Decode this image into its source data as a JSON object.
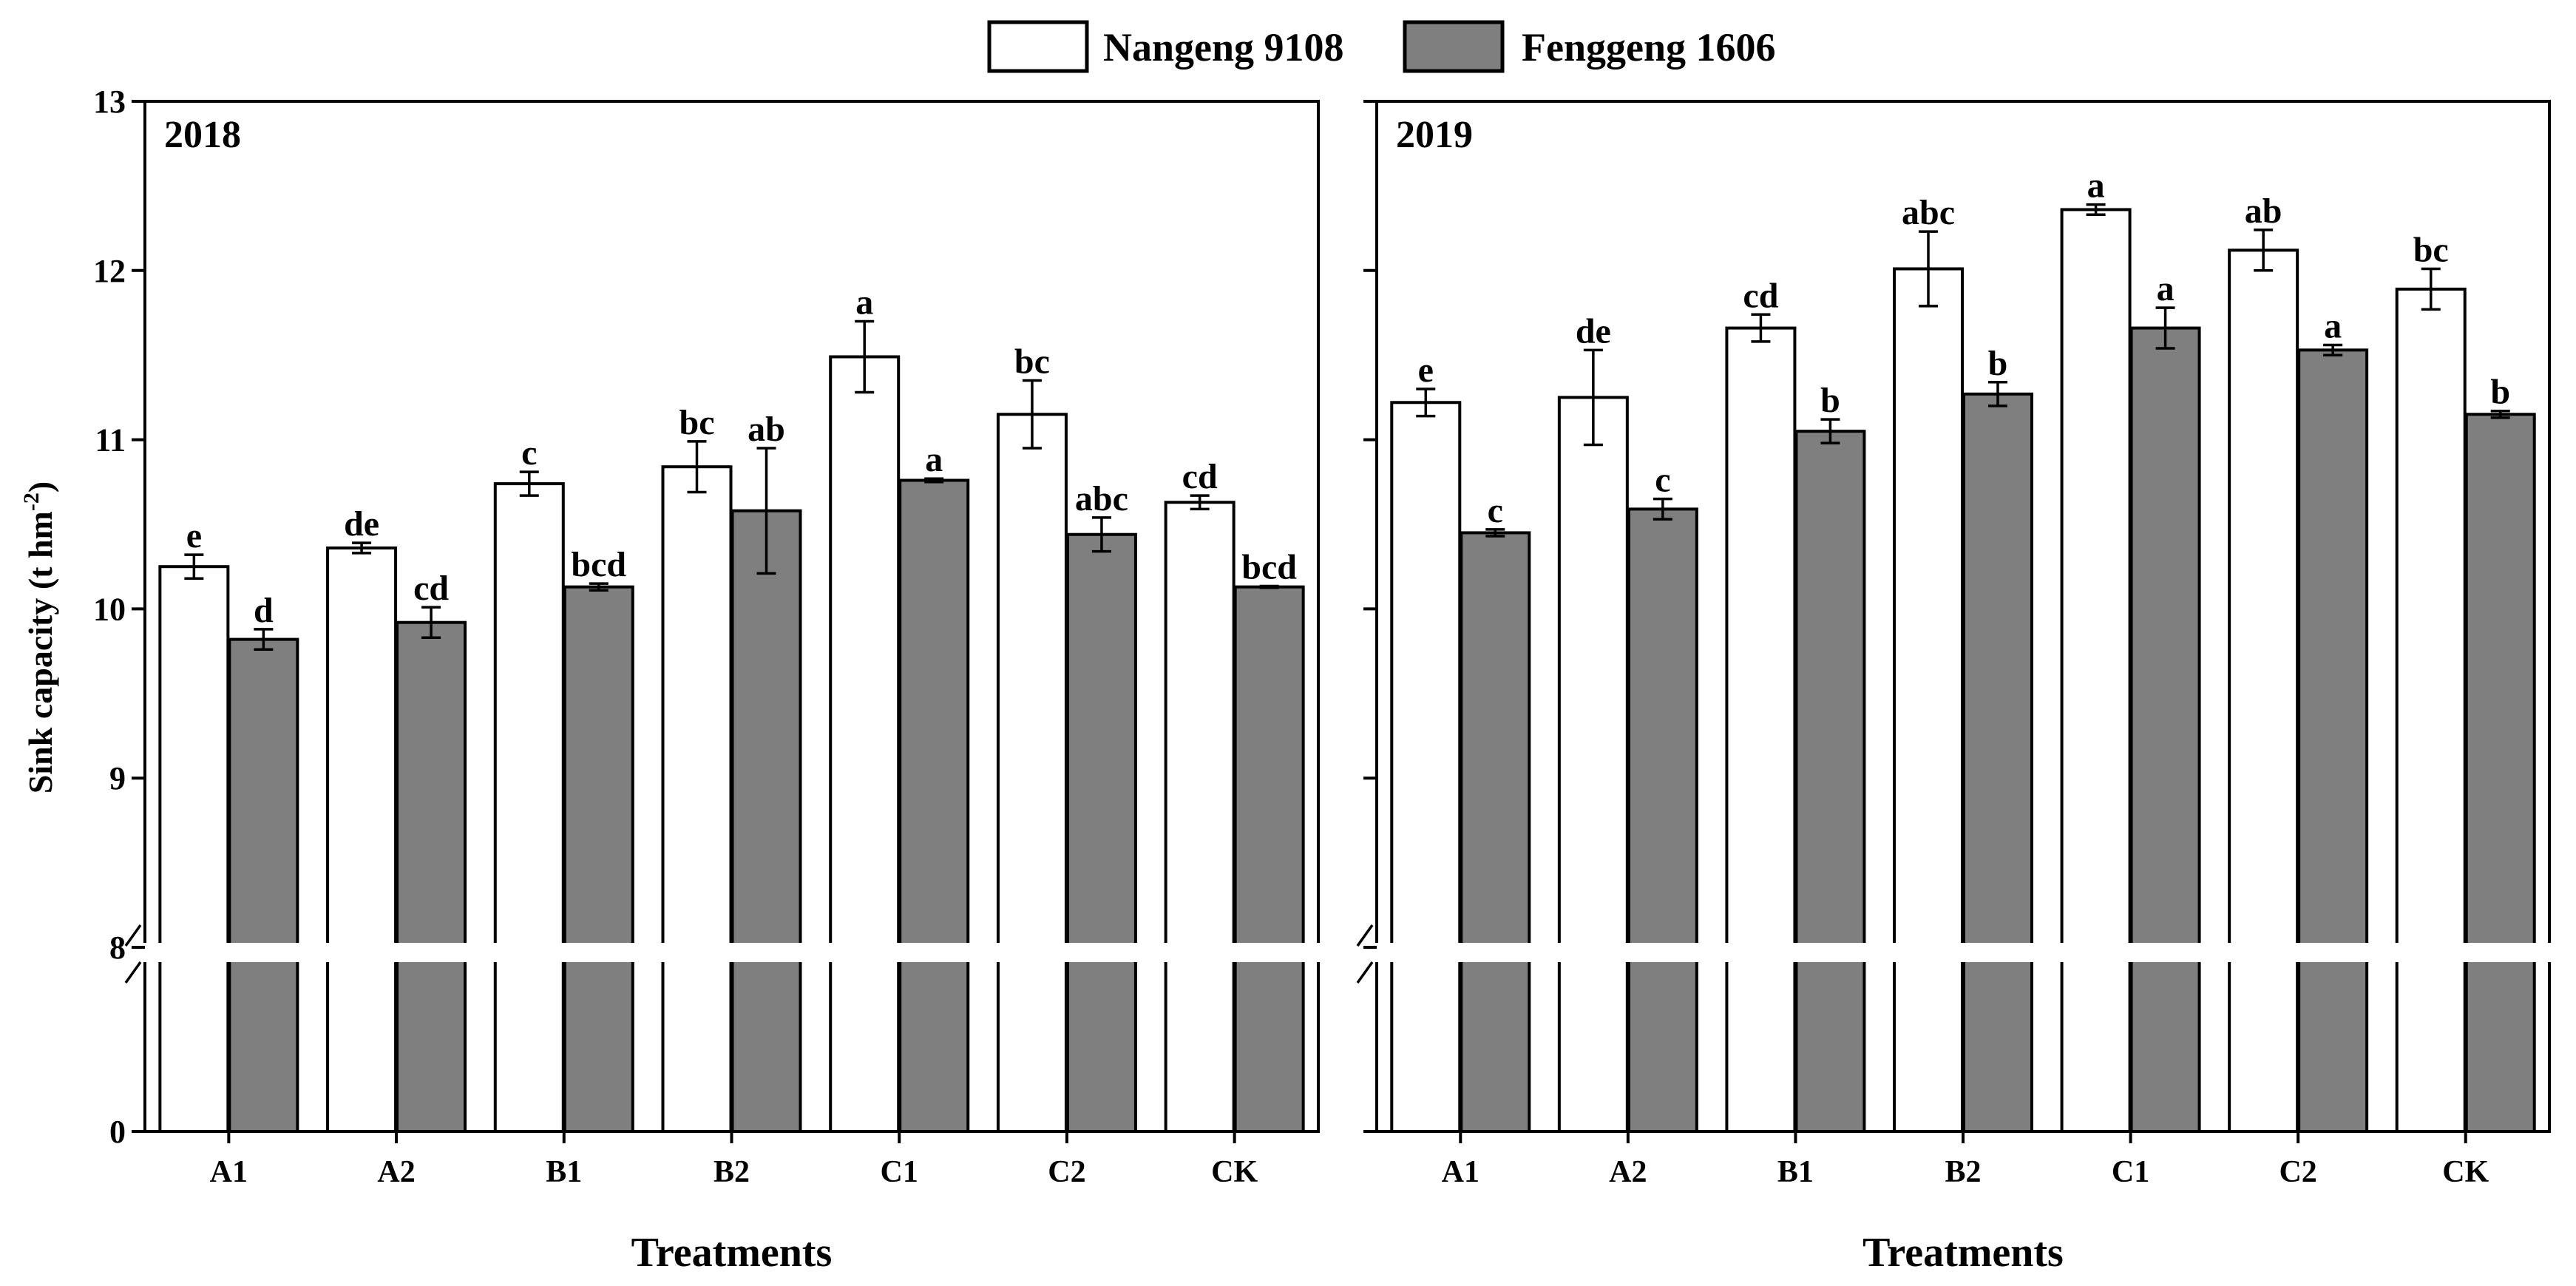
{
  "chart_data": {
    "type": "bar",
    "ylabel": "Sink capacity (t hm",
    "ylabel_sup": "-2",
    "ylabel_end": ")",
    "xlabel": "Treatments",
    "categories": [
      "A1",
      "A2",
      "B1",
      "B2",
      "C1",
      "C2",
      "CK"
    ],
    "y_ticks": [
      "13",
      "12",
      "11",
      "10",
      "9",
      "8",
      "0"
    ],
    "ylim": [
      0,
      13
    ],
    "y_axis_break": [
      0,
      8
    ],
    "legend": [
      {
        "name": "Nangeng 9108",
        "color": "#ffffff"
      },
      {
        "name": "Fenggeng 1606",
        "color": "#7f7f7f"
      }
    ],
    "panels": [
      {
        "title": "2018",
        "series": [
          {
            "name": "Nangeng 9108",
            "values": [
              10.25,
              10.36,
              10.74,
              10.84,
              11.49,
              11.15,
              10.63
            ],
            "errors": [
              0.07,
              0.03,
              0.07,
              0.15,
              0.21,
              0.2,
              0.04
            ],
            "letters": [
              "e",
              "de",
              "c",
              "bc",
              "a",
              "bc",
              "cd"
            ]
          },
          {
            "name": "Fenggeng 1606",
            "values": [
              9.82,
              9.92,
              10.13,
              10.58,
              10.76,
              10.44,
              10.13
            ],
            "errors": [
              0.06,
              0.09,
              0.02,
              0.37,
              0.01,
              0.1,
              0.005
            ],
            "letters": [
              "d",
              "cd",
              "bcd",
              "ab",
              "a",
              "abc",
              "bcd"
            ]
          }
        ]
      },
      {
        "title": "2019",
        "series": [
          {
            "name": "Nangeng 9108",
            "values": [
              11.22,
              11.25,
              11.66,
              12.01,
              12.36,
              12.12,
              11.89
            ],
            "errors": [
              0.08,
              0.28,
              0.08,
              0.22,
              0.03,
              0.12,
              0.12
            ],
            "letters": [
              "e",
              "de",
              "cd",
              "abc",
              "a",
              "ab",
              "bc"
            ]
          },
          {
            "name": "Fenggeng 1606",
            "values": [
              10.45,
              10.59,
              11.05,
              11.27,
              11.66,
              11.53,
              11.15
            ],
            "errors": [
              0.02,
              0.06,
              0.07,
              0.07,
              0.12,
              0.03,
              0.02
            ],
            "letters": [
              "c",
              "c",
              "b",
              "b",
              "a",
              "a",
              "b"
            ]
          }
        ]
      }
    ]
  }
}
